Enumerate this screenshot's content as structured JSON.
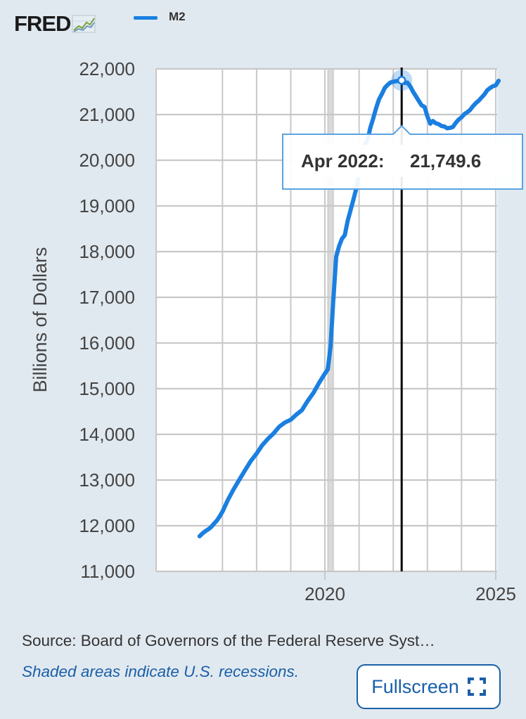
{
  "header": {
    "logo_text": "FRED",
    "legend_label": "M2"
  },
  "colors": {
    "line": "#1a7fe0",
    "grid": "#c8c8c8",
    "recession": "#d9d9d9",
    "cursor": "#000000",
    "tooltip_border": "#5ba3e0",
    "link": "#1a5fa8"
  },
  "chart_data": {
    "type": "line",
    "title": "",
    "series": [
      {
        "name": "M2",
        "x": [
          "2016-05",
          "2016-06",
          "2016-07",
          "2016-08",
          "2016-09",
          "2016-10",
          "2016-11",
          "2016-12",
          "2017-01",
          "2017-03",
          "2017-05",
          "2017-07",
          "2017-09",
          "2017-11",
          "2018-01",
          "2018-03",
          "2018-05",
          "2018-07",
          "2018-09",
          "2018-11",
          "2019-01",
          "2019-03",
          "2019-05",
          "2019-07",
          "2019-09",
          "2019-11",
          "2020-01",
          "2020-02",
          "2020-03",
          "2020-04",
          "2020-05",
          "2020-06",
          "2020-07",
          "2020-08",
          "2020-09",
          "2020-10",
          "2020-11",
          "2020-12",
          "2021-01",
          "2021-02",
          "2021-03",
          "2021-04",
          "2021-05",
          "2021-06",
          "2021-07",
          "2021-08",
          "2021-09",
          "2021-10",
          "2021-11",
          "2021-12",
          "2022-01",
          "2022-02",
          "2022-03",
          "2022-04",
          "2022-05",
          "2022-06",
          "2022-07",
          "2022-08",
          "2022-09",
          "2022-10",
          "2022-11",
          "2022-12",
          "2023-01",
          "2023-02",
          "2023-03",
          "2023-04",
          "2023-05",
          "2023-06",
          "2023-07",
          "2023-08",
          "2023-09",
          "2023-10",
          "2023-11",
          "2023-12",
          "2024-01",
          "2024-02",
          "2024-03",
          "2024-04",
          "2024-05",
          "2024-06",
          "2024-07",
          "2024-08",
          "2024-09",
          "2024-10",
          "2024-11",
          "2024-12",
          "2025-01",
          "2025-02"
        ],
        "values": [
          11770,
          11830,
          11880,
          11920,
          11970,
          12040,
          12110,
          12200,
          12310,
          12570,
          12800,
          13010,
          13220,
          13420,
          13580,
          13760,
          13900,
          14020,
          14170,
          14260,
          14320,
          14430,
          14530,
          14730,
          14910,
          15130,
          15330,
          15420,
          15910,
          16970,
          17890,
          18120,
          18280,
          18360,
          18680,
          18900,
          19140,
          19380,
          19710,
          20000,
          20340,
          20440,
          20710,
          20920,
          21140,
          21330,
          21450,
          21580,
          21650,
          21700,
          21720,
          21730,
          21740,
          21749.6,
          21690,
          21700,
          21620,
          21500,
          21400,
          21300,
          21200,
          21170,
          20960,
          20800,
          20860,
          20810,
          20790,
          20750,
          20740,
          20700,
          20710,
          20730,
          20820,
          20890,
          20940,
          21010,
          21050,
          21100,
          21180,
          21250,
          21300,
          21370,
          21440,
          21530,
          21580,
          21620,
          21640,
          21740
        ]
      }
    ],
    "ylabel": "Billions of Dollars",
    "xlabel": "",
    "ylim": [
      11000,
      22000
    ],
    "yticks": [
      "11,000",
      "12,000",
      "13,000",
      "14,000",
      "15,000",
      "16,000",
      "17,000",
      "18,000",
      "19,000",
      "20,000",
      "21,000",
      "22,000"
    ],
    "xticks": [
      {
        "label": "2020",
        "date": "2020-01"
      },
      {
        "label": "2025",
        "date": "2025-01"
      }
    ],
    "recessions": [
      {
        "start": "2020-02",
        "end": "2020-04"
      }
    ],
    "grid": true,
    "legend": "top-left",
    "highlight": {
      "date": "2022-04",
      "date_label": "Apr 2022:",
      "value": 21749.6,
      "value_label": "21,749.6"
    }
  },
  "footer": {
    "source": "Source: Board of Governors of the Federal Reserve Syst…",
    "note": "Shaded areas indicate U.S. recessions.",
    "fullscreen_label": "Fullscreen"
  }
}
